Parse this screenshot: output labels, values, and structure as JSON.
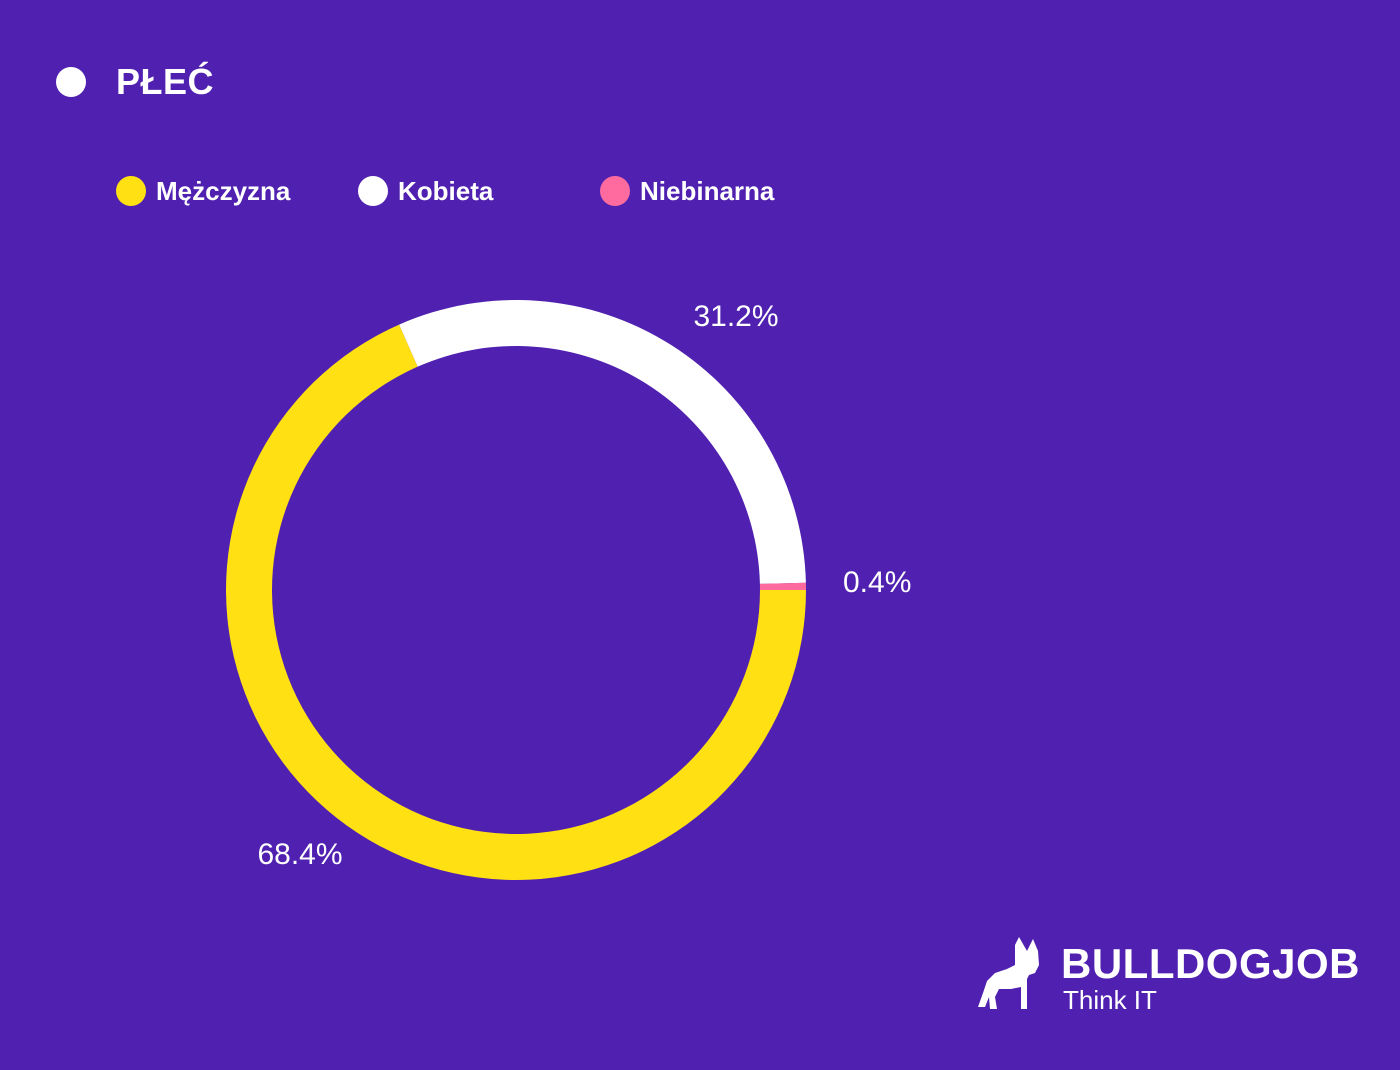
{
  "title": "PŁEĆ",
  "colors": {
    "background": "#5021B0",
    "text": "#FFFFFF"
  },
  "chart_data": {
    "type": "pie",
    "variant": "donut",
    "legend_position": "top-left",
    "slices": [
      {
        "name": "Mężczyzna",
        "value": 68.4,
        "label": "68.4%",
        "color": "#FFE013"
      },
      {
        "name": "Kobieta",
        "value": 31.2,
        "label": "31.2%",
        "color": "#FFFFFF"
      },
      {
        "name": "Niebinarna",
        "value": 0.4,
        "label": "0.4%",
        "color": "#FF6B9E"
      }
    ]
  },
  "brand": {
    "name": "BULLDOGJOB",
    "tagline": "Think IT",
    "icon": "bulldog-logo-icon"
  }
}
